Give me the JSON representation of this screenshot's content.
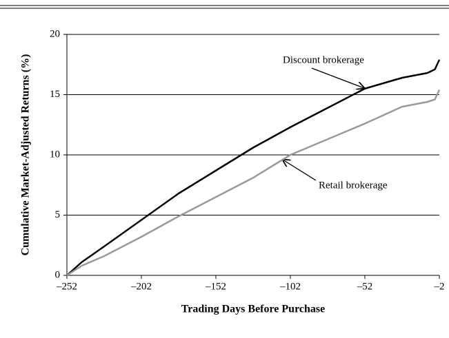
{
  "chart_data": {
    "type": "line",
    "y_label": "Cumulative Market-Adjusted Returns (%)",
    "x_label": "Trading Days Before Purchase",
    "x": [
      -252,
      -242,
      -227,
      -202,
      -177,
      -152,
      -127,
      -102,
      -77,
      -52,
      -27,
      -10,
      -5,
      -2
    ],
    "series": [
      {
        "name": "Discount brokerage",
        "color": "#000000",
        "values": [
          0,
          1.1,
          2.4,
          4.6,
          6.8,
          8.7,
          10.6,
          12.3,
          13.9,
          15.5,
          16.4,
          16.8,
          17.1,
          17.9
        ]
      },
      {
        "name": "Retail brokerage",
        "color": "#999999",
        "values": [
          0,
          0.8,
          1.6,
          3.2,
          4.9,
          6.5,
          8.1,
          10.0,
          11.3,
          12.6,
          14.0,
          14.4,
          14.6,
          15.4
        ]
      }
    ],
    "xlim": [
      -252,
      -2
    ],
    "xticks": [
      {
        "value": -252,
        "label": "–252"
      },
      {
        "value": -202,
        "label": "–202"
      },
      {
        "value": -152,
        "label": "–152"
      },
      {
        "value": -102,
        "label": "–102"
      },
      {
        "value": -52,
        "label": "–52"
      },
      {
        "value": -2,
        "label": "–2"
      }
    ],
    "ylim": [
      0,
      20
    ],
    "yticks": [
      0,
      5,
      10,
      15,
      20
    ],
    "grid": true
  }
}
